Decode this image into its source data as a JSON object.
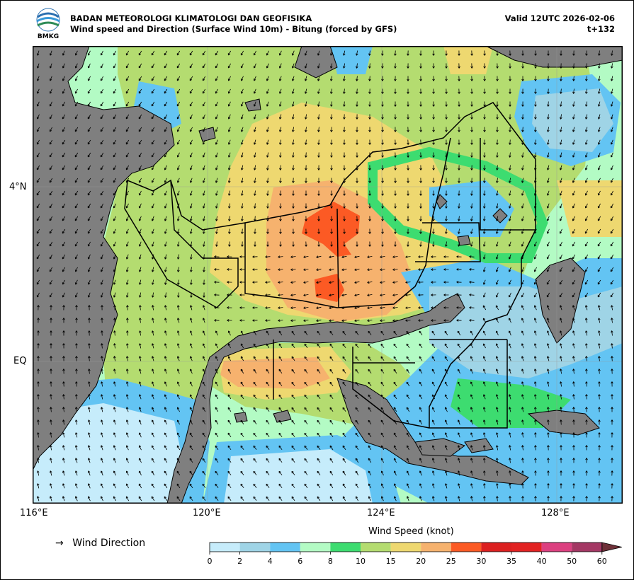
{
  "header": {
    "agency": "BADAN METEOROLOGI KLIMATOLOGI DAN GEOFISIKA",
    "subtitle": "Wind speed and Direction (Surface Wind 10m) - Bitung (forced by GFS)",
    "valid": "Valid 12UTC 2026-02-06",
    "step": "t+132",
    "logo_text": "BMKG"
  },
  "axes": {
    "lon_labels": [
      "116°E",
      "120°E",
      "124°E",
      "128°E"
    ],
    "lat_labels": [
      "4°N",
      "EQ"
    ]
  },
  "legend": {
    "arrow_glyph": "→",
    "direction_label": "Wind Direction",
    "colorbar_title": "Wind Speed (knot)",
    "ticks": [
      "0",
      "2",
      "4",
      "6",
      "8",
      "10",
      "15",
      "20",
      "25",
      "30",
      "35",
      "40",
      "50",
      "60"
    ],
    "colors": [
      "#c6ecfb",
      "#9fd4e6",
      "#63c4f3",
      "#b3fbc4",
      "#3ddc70",
      "#b4dc70",
      "#eed870",
      "#f6b26e",
      "#fc5a24",
      "#dc2020",
      "#e22222",
      "#dc4080",
      "#a43864"
    ],
    "extend_color": "#6e3038"
  },
  "map_colors": {
    "land": "#7f7f7f",
    "coast": "#000000",
    "boundary": "#000000"
  }
}
